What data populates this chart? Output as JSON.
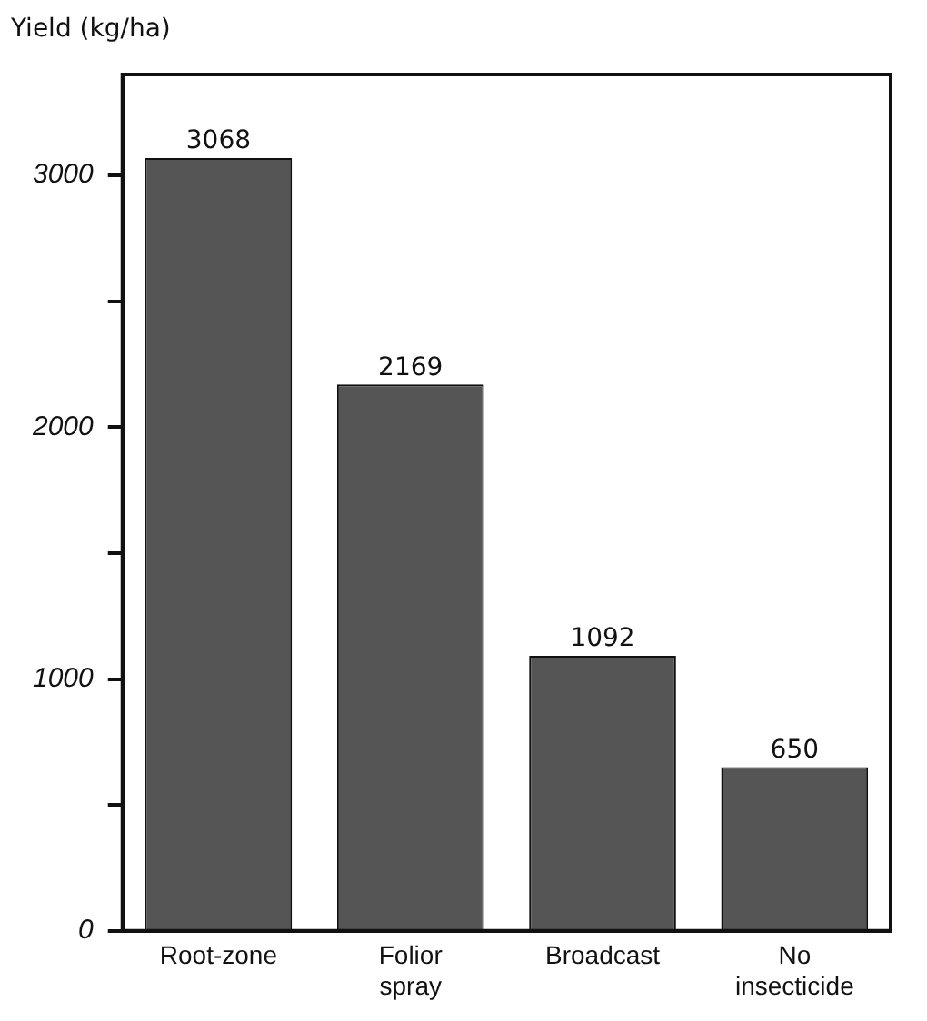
{
  "chart_data": {
    "type": "bar",
    "ylabel": "Yield (kg/ha)",
    "categories": [
      "Root-zone",
      "Folior spray",
      "Broadcast",
      "No insecticide"
    ],
    "values": [
      3068,
      2169,
      1092,
      650
    ],
    "color": "#555555",
    "ylim": [
      0,
      3400
    ],
    "yticks": [
      0,
      {
        "value": 500,
        "label": null
      },
      1000,
      {
        "value": 1500,
        "label": null
      },
      2000,
      {
        "value": 2500,
        "label": null
      },
      3000
    ],
    "grid": false,
    "data_labels": true,
    "legend": false
  }
}
